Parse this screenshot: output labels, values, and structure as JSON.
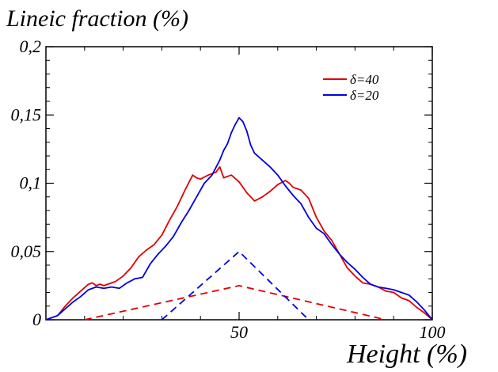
{
  "chart_data": {
    "type": "line",
    "title": "",
    "ylabel": "Lineic fraction (%)",
    "xlabel": "Height (%)",
    "xlim": [
      0,
      100
    ],
    "ylim": [
      0,
      0.2
    ],
    "xticks": [
      {
        "value": 50,
        "label": "50"
      },
      {
        "value": 100,
        "label": "100"
      }
    ],
    "yticks": [
      {
        "value": 0,
        "label": "0"
      },
      {
        "value": 0.05,
        "label": "0,05"
      },
      {
        "value": 0.1,
        "label": "0,1"
      },
      {
        "value": 0.15,
        "label": "0,15"
      },
      {
        "value": 0.2,
        "label": "0,2"
      }
    ],
    "grid": false,
    "legend_position": "top-right",
    "series": [
      {
        "name": "δ=40",
        "color": "#e00000",
        "style": "solid",
        "x": [
          0,
          3,
          5,
          7,
          9,
          11,
          12,
          13,
          14,
          15,
          16,
          17,
          18,
          20,
          22,
          24,
          26,
          28,
          30,
          32,
          34,
          36,
          38,
          39,
          40,
          42,
          44,
          45,
          46,
          48,
          50,
          52,
          54,
          56,
          58,
          60,
          62,
          63,
          64,
          66,
          68,
          70,
          72,
          74,
          76,
          78,
          80,
          82,
          84,
          86,
          88,
          90,
          92,
          94,
          96,
          98,
          100
        ],
        "y": [
          0,
          0.003,
          0.01,
          0.016,
          0.021,
          0.026,
          0.027,
          0.025,
          0.026,
          0.025,
          0.026,
          0.027,
          0.028,
          0.032,
          0.038,
          0.046,
          0.051,
          0.055,
          0.062,
          0.073,
          0.083,
          0.095,
          0.106,
          0.104,
          0.103,
          0.106,
          0.108,
          0.112,
          0.104,
          0.106,
          0.101,
          0.093,
          0.087,
          0.09,
          0.094,
          0.099,
          0.102,
          0.1,
          0.097,
          0.095,
          0.089,
          0.075,
          0.065,
          0.058,
          0.048,
          0.038,
          0.032,
          0.027,
          0.026,
          0.024,
          0.021,
          0.02,
          0.016,
          0.014,
          0.009,
          0.005,
          0
        ]
      },
      {
        "name": "δ=20",
        "color": "#0000e0",
        "style": "solid",
        "x": [
          0,
          3,
          5,
          7,
          9,
          11,
          13,
          15,
          17,
          19,
          21,
          23,
          25,
          27,
          29,
          31,
          33,
          35,
          37,
          39,
          41,
          43,
          45,
          46,
          47,
          48,
          49,
          50,
          51,
          52,
          53,
          54,
          56,
          58,
          60,
          62,
          64,
          66,
          68,
          70,
          72,
          74,
          76,
          78,
          80,
          82,
          84,
          86,
          88,
          90,
          92,
          94,
          96,
          98,
          100
        ],
        "y": [
          0,
          0.003,
          0.008,
          0.013,
          0.017,
          0.022,
          0.024,
          0.023,
          0.024,
          0.023,
          0.027,
          0.03,
          0.031,
          0.041,
          0.048,
          0.054,
          0.061,
          0.071,
          0.08,
          0.09,
          0.1,
          0.106,
          0.117,
          0.124,
          0.129,
          0.137,
          0.143,
          0.148,
          0.145,
          0.138,
          0.128,
          0.122,
          0.117,
          0.112,
          0.106,
          0.098,
          0.091,
          0.085,
          0.075,
          0.067,
          0.063,
          0.055,
          0.048,
          0.042,
          0.037,
          0.031,
          0.026,
          0.024,
          0.023,
          0.022,
          0.02,
          0.018,
          0.013,
          0.007,
          0
        ]
      },
      {
        "name": "",
        "color": "#e00000",
        "style": "dashed",
        "x": [
          10,
          50,
          88
        ],
        "y": [
          0,
          0.025,
          0
        ]
      },
      {
        "name": "",
        "color": "#0000e0",
        "style": "dashed",
        "x": [
          30,
          50,
          68
        ],
        "y": [
          0,
          0.05,
          0
        ]
      }
    ]
  }
}
